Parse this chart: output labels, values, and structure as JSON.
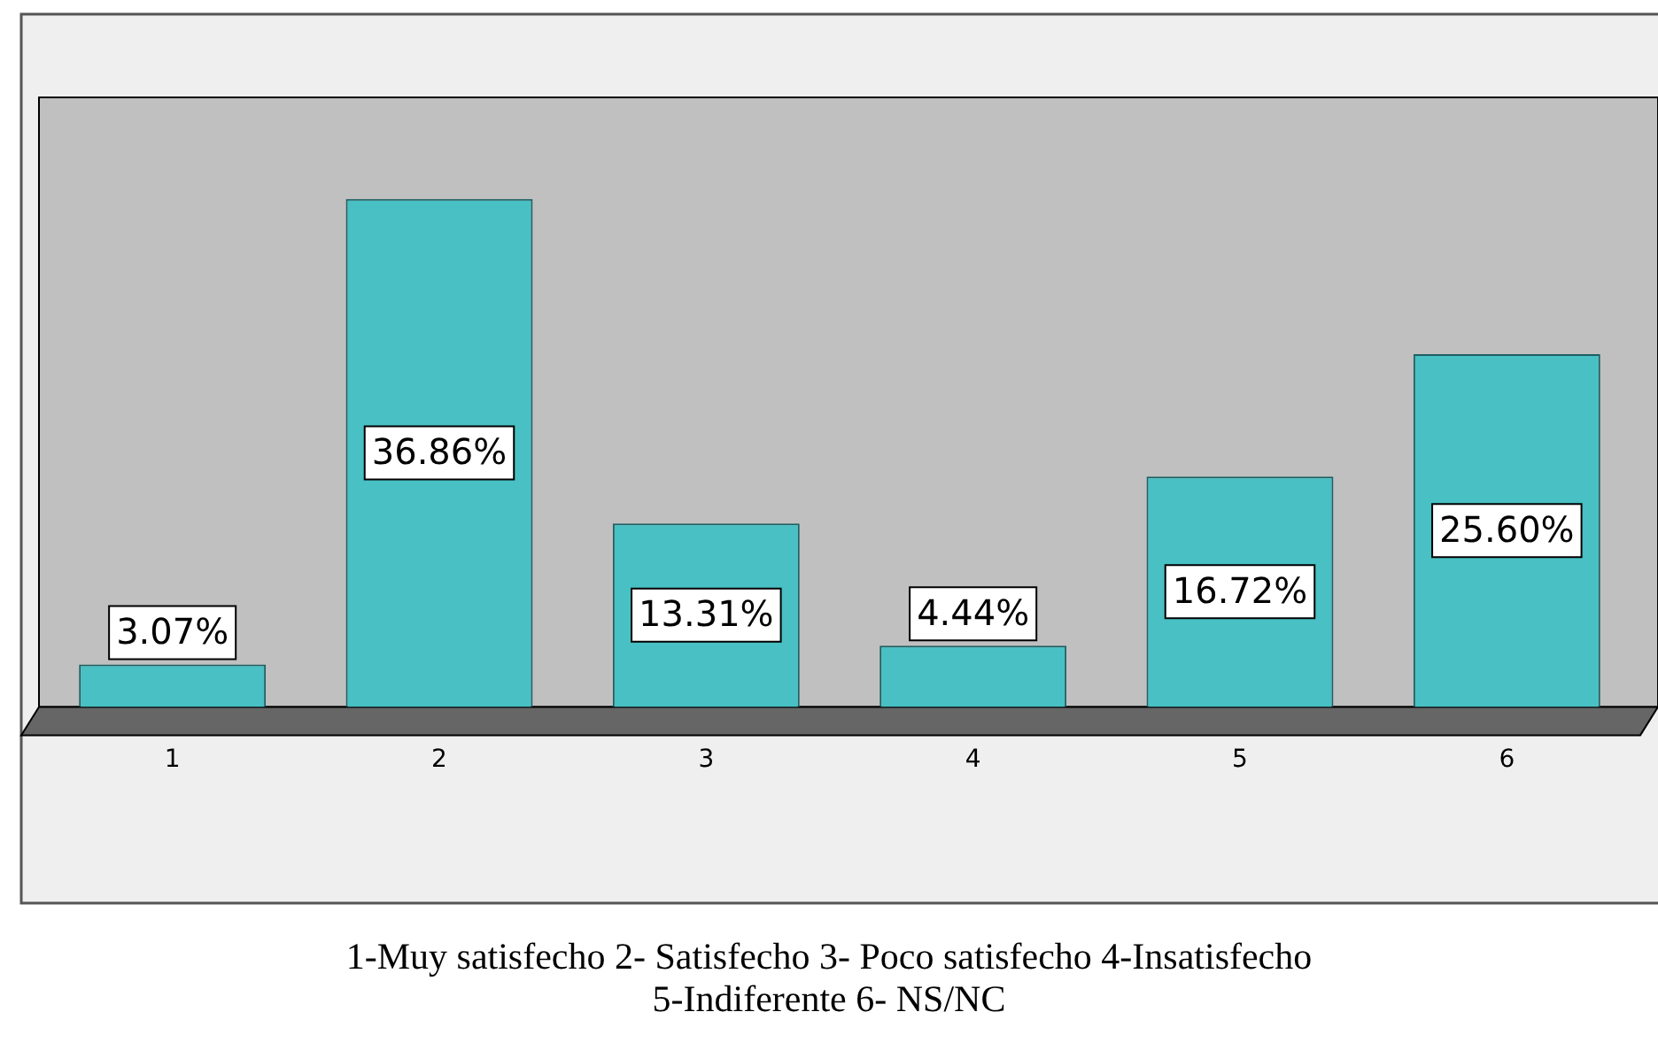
{
  "chart_data": {
    "type": "bar",
    "categories": [
      "1",
      "2",
      "3",
      "4",
      "5",
      "6"
    ],
    "values": [
      3.07,
      36.86,
      13.31,
      4.44,
      16.72,
      25.6
    ],
    "value_labels": [
      "3.07%",
      "36.86%",
      "13.31%",
      "4.44%",
      "16.72%",
      "25.60%"
    ],
    "color": "#48c0c4",
    "grid": false,
    "legend": false,
    "annotations": [
      "1-Muy satisfecho 2- Satisfecho 3- Poco satisfecho 4-Insatisfecho",
      "5-Indiferente 6- NS/NC"
    ]
  }
}
